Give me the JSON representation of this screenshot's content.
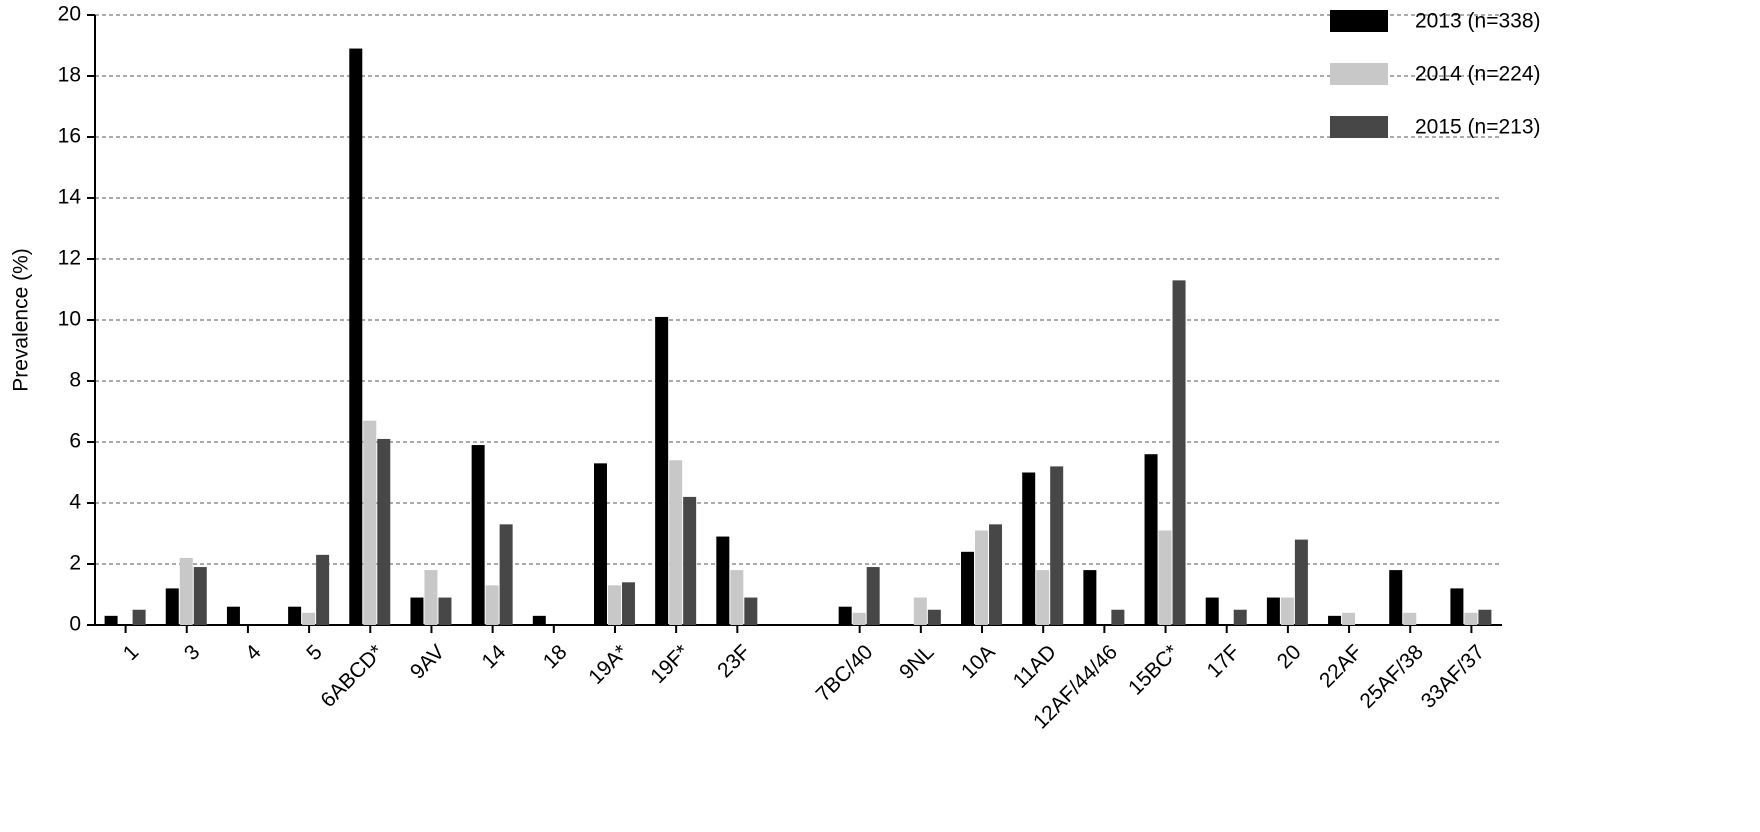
{
  "chart_data": {
    "type": "bar",
    "y_label": "Prevalence (%)",
    "categories": [
      "1",
      "3",
      "4",
      "5",
      "6ABCD*",
      "9AV",
      "14",
      "18",
      "19A*",
      "19F*",
      "23F",
      null,
      "7BC/40",
      "9NL",
      "10A",
      "11AD",
      "12AF/44/46",
      "15BC*",
      "17F",
      "20",
      "22AF",
      "25AF/38",
      "33AF/37"
    ],
    "series": [
      {
        "name": "2013 (n=338)",
        "color": "#000000",
        "values": [
          0.3,
          1.2,
          0.6,
          0.6,
          18.9,
          0.9,
          5.9,
          0.3,
          5.3,
          10.1,
          2.9,
          null,
          0.6,
          0,
          2.4,
          5.0,
          1.8,
          5.6,
          0.9,
          0.9,
          0.3,
          1.8,
          1.2
        ]
      },
      {
        "name": "2014 (n=224)",
        "color": "#c8c8c8",
        "values": [
          0,
          2.2,
          0,
          0.4,
          6.7,
          1.8,
          1.3,
          0,
          1.3,
          5.4,
          1.8,
          null,
          0.4,
          0.9,
          3.1,
          1.8,
          0,
          3.1,
          0,
          0.9,
          0.4,
          0.4,
          0.4
        ]
      },
      {
        "name": "2015 (n=213)",
        "color": "#474747",
        "values": [
          0.5,
          1.9,
          0,
          2.3,
          6.1,
          0.9,
          3.3,
          0,
          1.4,
          4.2,
          0.9,
          null,
          1.9,
          0.5,
          3.3,
          5.2,
          0.5,
          11.3,
          0.5,
          2.8,
          0,
          0,
          0.5
        ]
      }
    ],
    "ylim": [
      0,
      20
    ],
    "yticks": [
      0,
      2,
      4,
      6,
      8,
      10,
      12,
      14,
      16,
      18,
      20
    ],
    "grid": true,
    "legend": "top-right"
  }
}
